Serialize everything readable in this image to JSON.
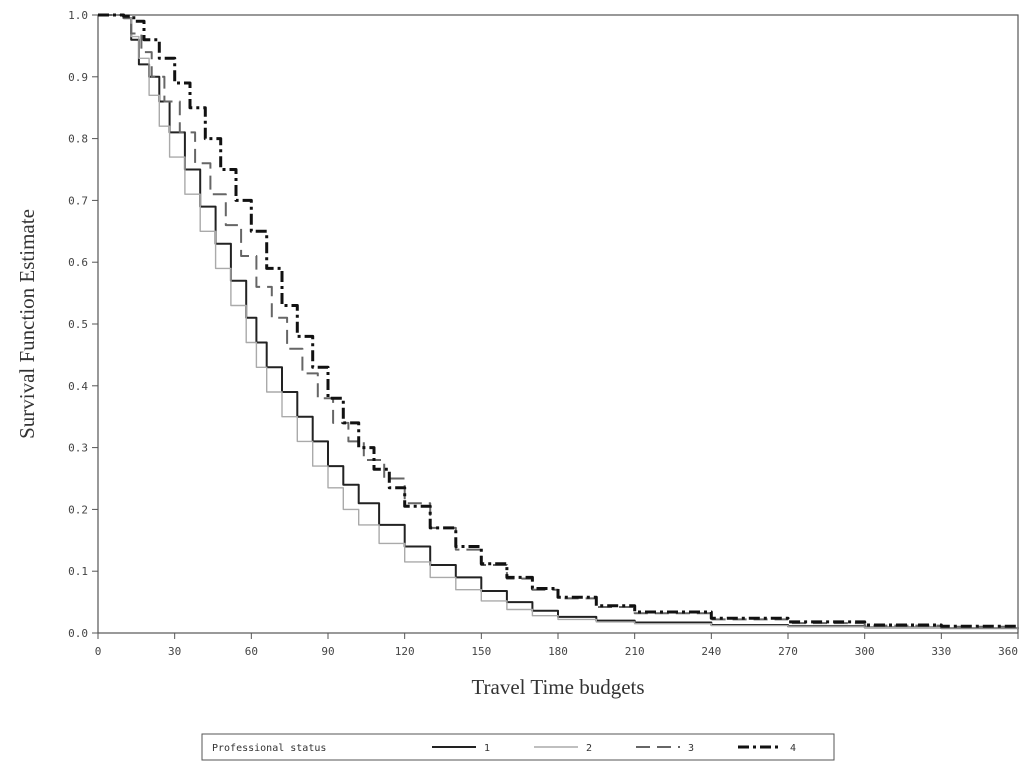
{
  "chart_data": {
    "type": "line",
    "title": "",
    "xlabel": "Travel Time budgets",
    "ylabel": "Survival Function Estimate",
    "xlim": [
      0,
      360
    ],
    "ylim": [
      0,
      1
    ],
    "x_ticks": [
      0,
      30,
      60,
      90,
      120,
      150,
      180,
      210,
      240,
      270,
      300,
      330,
      360
    ],
    "x_tick_labels": [
      "0",
      "30",
      "60",
      "90",
      "120",
      "150",
      "180",
      "210",
      "240",
      "270",
      "300",
      "330",
      "360"
    ],
    "y_ticks": [
      0,
      0.1,
      0.2,
      0.3,
      0.4,
      0.5,
      0.6,
      0.7,
      0.8,
      0.9,
      1.0
    ],
    "y_tick_labels": [
      "0.0",
      "0.1",
      "0.2",
      "0.3",
      "0.4",
      "0.5",
      "0.6",
      "0.7",
      "0.8",
      "0.9",
      "1.0"
    ],
    "grid": false,
    "legend": {
      "title": "Professional status",
      "placement": "bottom-center"
    },
    "series": [
      {
        "name": "1",
        "color": "#222222",
        "dash": "solid",
        "points": [
          [
            0,
            1.0
          ],
          [
            10,
            0.995
          ],
          [
            13,
            0.96
          ],
          [
            16,
            0.92
          ],
          [
            20,
            0.9
          ],
          [
            24,
            0.86
          ],
          [
            28,
            0.81
          ],
          [
            34,
            0.75
          ],
          [
            40,
            0.69
          ],
          [
            46,
            0.63
          ],
          [
            52,
            0.57
          ],
          [
            58,
            0.51
          ],
          [
            62,
            0.47
          ],
          [
            66,
            0.43
          ],
          [
            72,
            0.39
          ],
          [
            78,
            0.35
          ],
          [
            84,
            0.31
          ],
          [
            90,
            0.27
          ],
          [
            96,
            0.24
          ],
          [
            102,
            0.21
          ],
          [
            110,
            0.175
          ],
          [
            120,
            0.14
          ],
          [
            130,
            0.11
          ],
          [
            140,
            0.09
          ],
          [
            150,
            0.068
          ],
          [
            160,
            0.05
          ],
          [
            170,
            0.036
          ],
          [
            180,
            0.026
          ],
          [
            195,
            0.02
          ],
          [
            210,
            0.017
          ],
          [
            240,
            0.013
          ],
          [
            270,
            0.011
          ],
          [
            300,
            0.009
          ],
          [
            330,
            0.008
          ],
          [
            360,
            0.007
          ]
        ]
      },
      {
        "name": "2",
        "color": "#aaaaaa",
        "dash": "solid",
        "points": [
          [
            0,
            1.0
          ],
          [
            10,
            0.995
          ],
          [
            13,
            0.965
          ],
          [
            16,
            0.93
          ],
          [
            20,
            0.87
          ],
          [
            24,
            0.82
          ],
          [
            28,
            0.77
          ],
          [
            34,
            0.71
          ],
          [
            40,
            0.65
          ],
          [
            46,
            0.59
          ],
          [
            52,
            0.53
          ],
          [
            58,
            0.47
          ],
          [
            62,
            0.43
          ],
          [
            66,
            0.39
          ],
          [
            72,
            0.35
          ],
          [
            78,
            0.31
          ],
          [
            84,
            0.27
          ],
          [
            90,
            0.235
          ],
          [
            96,
            0.2
          ],
          [
            102,
            0.175
          ],
          [
            110,
            0.145
          ],
          [
            120,
            0.115
          ],
          [
            130,
            0.09
          ],
          [
            140,
            0.07
          ],
          [
            150,
            0.052
          ],
          [
            160,
            0.038
          ],
          [
            170,
            0.028
          ],
          [
            180,
            0.022
          ],
          [
            195,
            0.018
          ],
          [
            210,
            0.015
          ],
          [
            240,
            0.012
          ],
          [
            270,
            0.01
          ],
          [
            300,
            0.009
          ],
          [
            330,
            0.008
          ],
          [
            360,
            0.007
          ]
        ]
      },
      {
        "name": "3",
        "color": "#666666",
        "dash": "long-dash",
        "points": [
          [
            0,
            1.0
          ],
          [
            10,
            0.995
          ],
          [
            13,
            0.97
          ],
          [
            17,
            0.94
          ],
          [
            21,
            0.9
          ],
          [
            26,
            0.86
          ],
          [
            32,
            0.81
          ],
          [
            38,
            0.76
          ],
          [
            44,
            0.71
          ],
          [
            50,
            0.66
          ],
          [
            56,
            0.61
          ],
          [
            62,
            0.56
          ],
          [
            68,
            0.51
          ],
          [
            74,
            0.46
          ],
          [
            80,
            0.42
          ],
          [
            86,
            0.38
          ],
          [
            92,
            0.34
          ],
          [
            98,
            0.31
          ],
          [
            104,
            0.28
          ],
          [
            112,
            0.25
          ],
          [
            120,
            0.21
          ],
          [
            130,
            0.17
          ],
          [
            140,
            0.135
          ],
          [
            150,
            0.11
          ],
          [
            160,
            0.088
          ],
          [
            170,
            0.07
          ],
          [
            180,
            0.056
          ],
          [
            195,
            0.042
          ],
          [
            210,
            0.032
          ],
          [
            240,
            0.022
          ],
          [
            270,
            0.016
          ],
          [
            300,
            0.012
          ],
          [
            330,
            0.01
          ],
          [
            360,
            0.009
          ]
        ]
      },
      {
        "name": "4",
        "color": "#111111",
        "dash": "dash-dot",
        "points": [
          [
            0,
            1.0
          ],
          [
            10,
            0.998
          ],
          [
            14,
            0.99
          ],
          [
            18,
            0.96
          ],
          [
            24,
            0.93
          ],
          [
            30,
            0.89
          ],
          [
            36,
            0.85
          ],
          [
            42,
            0.8
          ],
          [
            48,
            0.75
          ],
          [
            54,
            0.7
          ],
          [
            60,
            0.65
          ],
          [
            66,
            0.59
          ],
          [
            72,
            0.53
          ],
          [
            78,
            0.48
          ],
          [
            84,
            0.43
          ],
          [
            90,
            0.38
          ],
          [
            96,
            0.34
          ],
          [
            102,
            0.3
          ],
          [
            108,
            0.265
          ],
          [
            114,
            0.235
          ],
          [
            120,
            0.205
          ],
          [
            130,
            0.17
          ],
          [
            140,
            0.14
          ],
          [
            150,
            0.112
          ],
          [
            160,
            0.09
          ],
          [
            170,
            0.072
          ],
          [
            180,
            0.058
          ],
          [
            195,
            0.044
          ],
          [
            210,
            0.034
          ],
          [
            240,
            0.024
          ],
          [
            270,
            0.018
          ],
          [
            300,
            0.013
          ],
          [
            330,
            0.011
          ],
          [
            360,
            0.01
          ]
        ]
      }
    ]
  }
}
